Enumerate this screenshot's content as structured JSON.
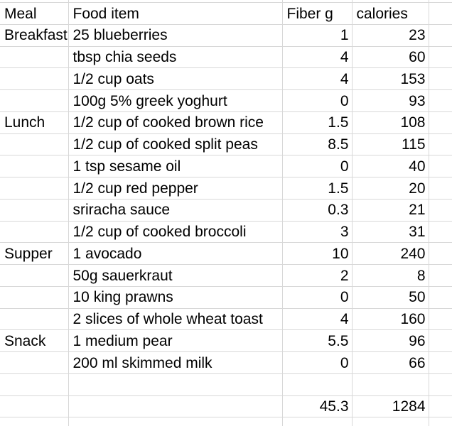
{
  "sheet": {
    "columns": {
      "meal": "Meal",
      "food": "Food item",
      "fiber": "Fiber g",
      "calories": "calories"
    },
    "rows": [
      {
        "meal": "Breakfast",
        "food": "25 blueberries",
        "fiber": "1",
        "calories": "23"
      },
      {
        "meal": "",
        "food": "tbsp chia seeds",
        "fiber": "4",
        "calories": "60"
      },
      {
        "meal": "",
        "food": "1/2 cup oats",
        "fiber": "4",
        "calories": "153"
      },
      {
        "meal": "",
        "food": "100g 5% greek yoghurt",
        "fiber": "0",
        "calories": "93"
      },
      {
        "meal": "Lunch",
        "food": "1/2 cup of cooked brown rice",
        "fiber": "1.5",
        "calories": "108"
      },
      {
        "meal": "",
        "food": "1/2 cup of cooked split peas",
        "fiber": "8.5",
        "calories": "115"
      },
      {
        "meal": "",
        "food": "1 tsp sesame oil",
        "fiber": "0",
        "calories": "40"
      },
      {
        "meal": "",
        "food": "1/2 cup red pepper",
        "fiber": "1.5",
        "calories": "20"
      },
      {
        "meal": "",
        "food": "sriracha sauce",
        "fiber": "0.3",
        "calories": "21"
      },
      {
        "meal": "",
        "food": "1/2 cup of cooked broccoli",
        "fiber": "3",
        "calories": "31"
      },
      {
        "meal": "Supper",
        "food": "1 avocado",
        "fiber": "10",
        "calories": "240"
      },
      {
        "meal": "",
        "food": "50g sauerkraut",
        "fiber": "2",
        "calories": "8"
      },
      {
        "meal": "",
        "food": "10 king prawns",
        "fiber": "0",
        "calories": "50"
      },
      {
        "meal": "",
        "food": "2 slices of whole wheat toast",
        "fiber": "4",
        "calories": "160"
      },
      {
        "meal": "Snack",
        "food": "1 medium pear",
        "fiber": "5.5",
        "calories": "96"
      },
      {
        "meal": "",
        "food": "200 ml skimmed milk",
        "fiber": "0",
        "calories": "66"
      }
    ],
    "totals": {
      "fiber": "45.3",
      "calories": "1284"
    },
    "colors": {
      "gridline": "#d8d8d8",
      "text": "#000000",
      "background": "#ffffff"
    }
  }
}
